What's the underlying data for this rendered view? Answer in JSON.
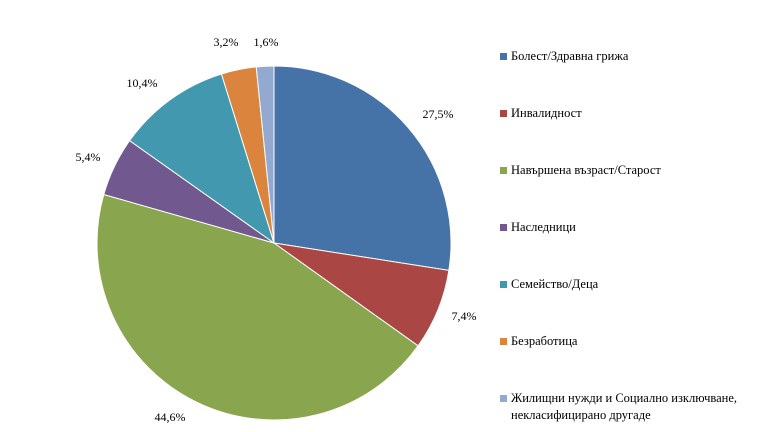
{
  "chart_data": {
    "type": "pie",
    "title": "",
    "slices": [
      {
        "label": "Болест/Здравна грижа",
        "value": 27.5,
        "data_label": "27,5%",
        "color": "#4572A7"
      },
      {
        "label": "Инвалидност",
        "value": 7.4,
        "data_label": "7,4%",
        "color": "#AA4643"
      },
      {
        "label": "Навършена възраст/Старост",
        "value": 44.6,
        "data_label": "44,6%",
        "color": "#89A54E"
      },
      {
        "label": "Наследници",
        "value": 5.4,
        "data_label": "5,4%",
        "color": "#71588F"
      },
      {
        "label": "Семейство/Деца",
        "value": 10.4,
        "data_label": "10,4%",
        "color": "#4198AF"
      },
      {
        "label": "Безработица",
        "value": 3.2,
        "data_label": "3,2%",
        "color": "#DB843D"
      },
      {
        "label": "Жилищни нужди и Социално изключване, некласифицирано другаде",
        "value": 1.6,
        "data_label": "1,6%",
        "color": "#93A9CF"
      }
    ],
    "legend_position": "right",
    "start_angle": "12 o'clock",
    "direction": "clockwise"
  }
}
